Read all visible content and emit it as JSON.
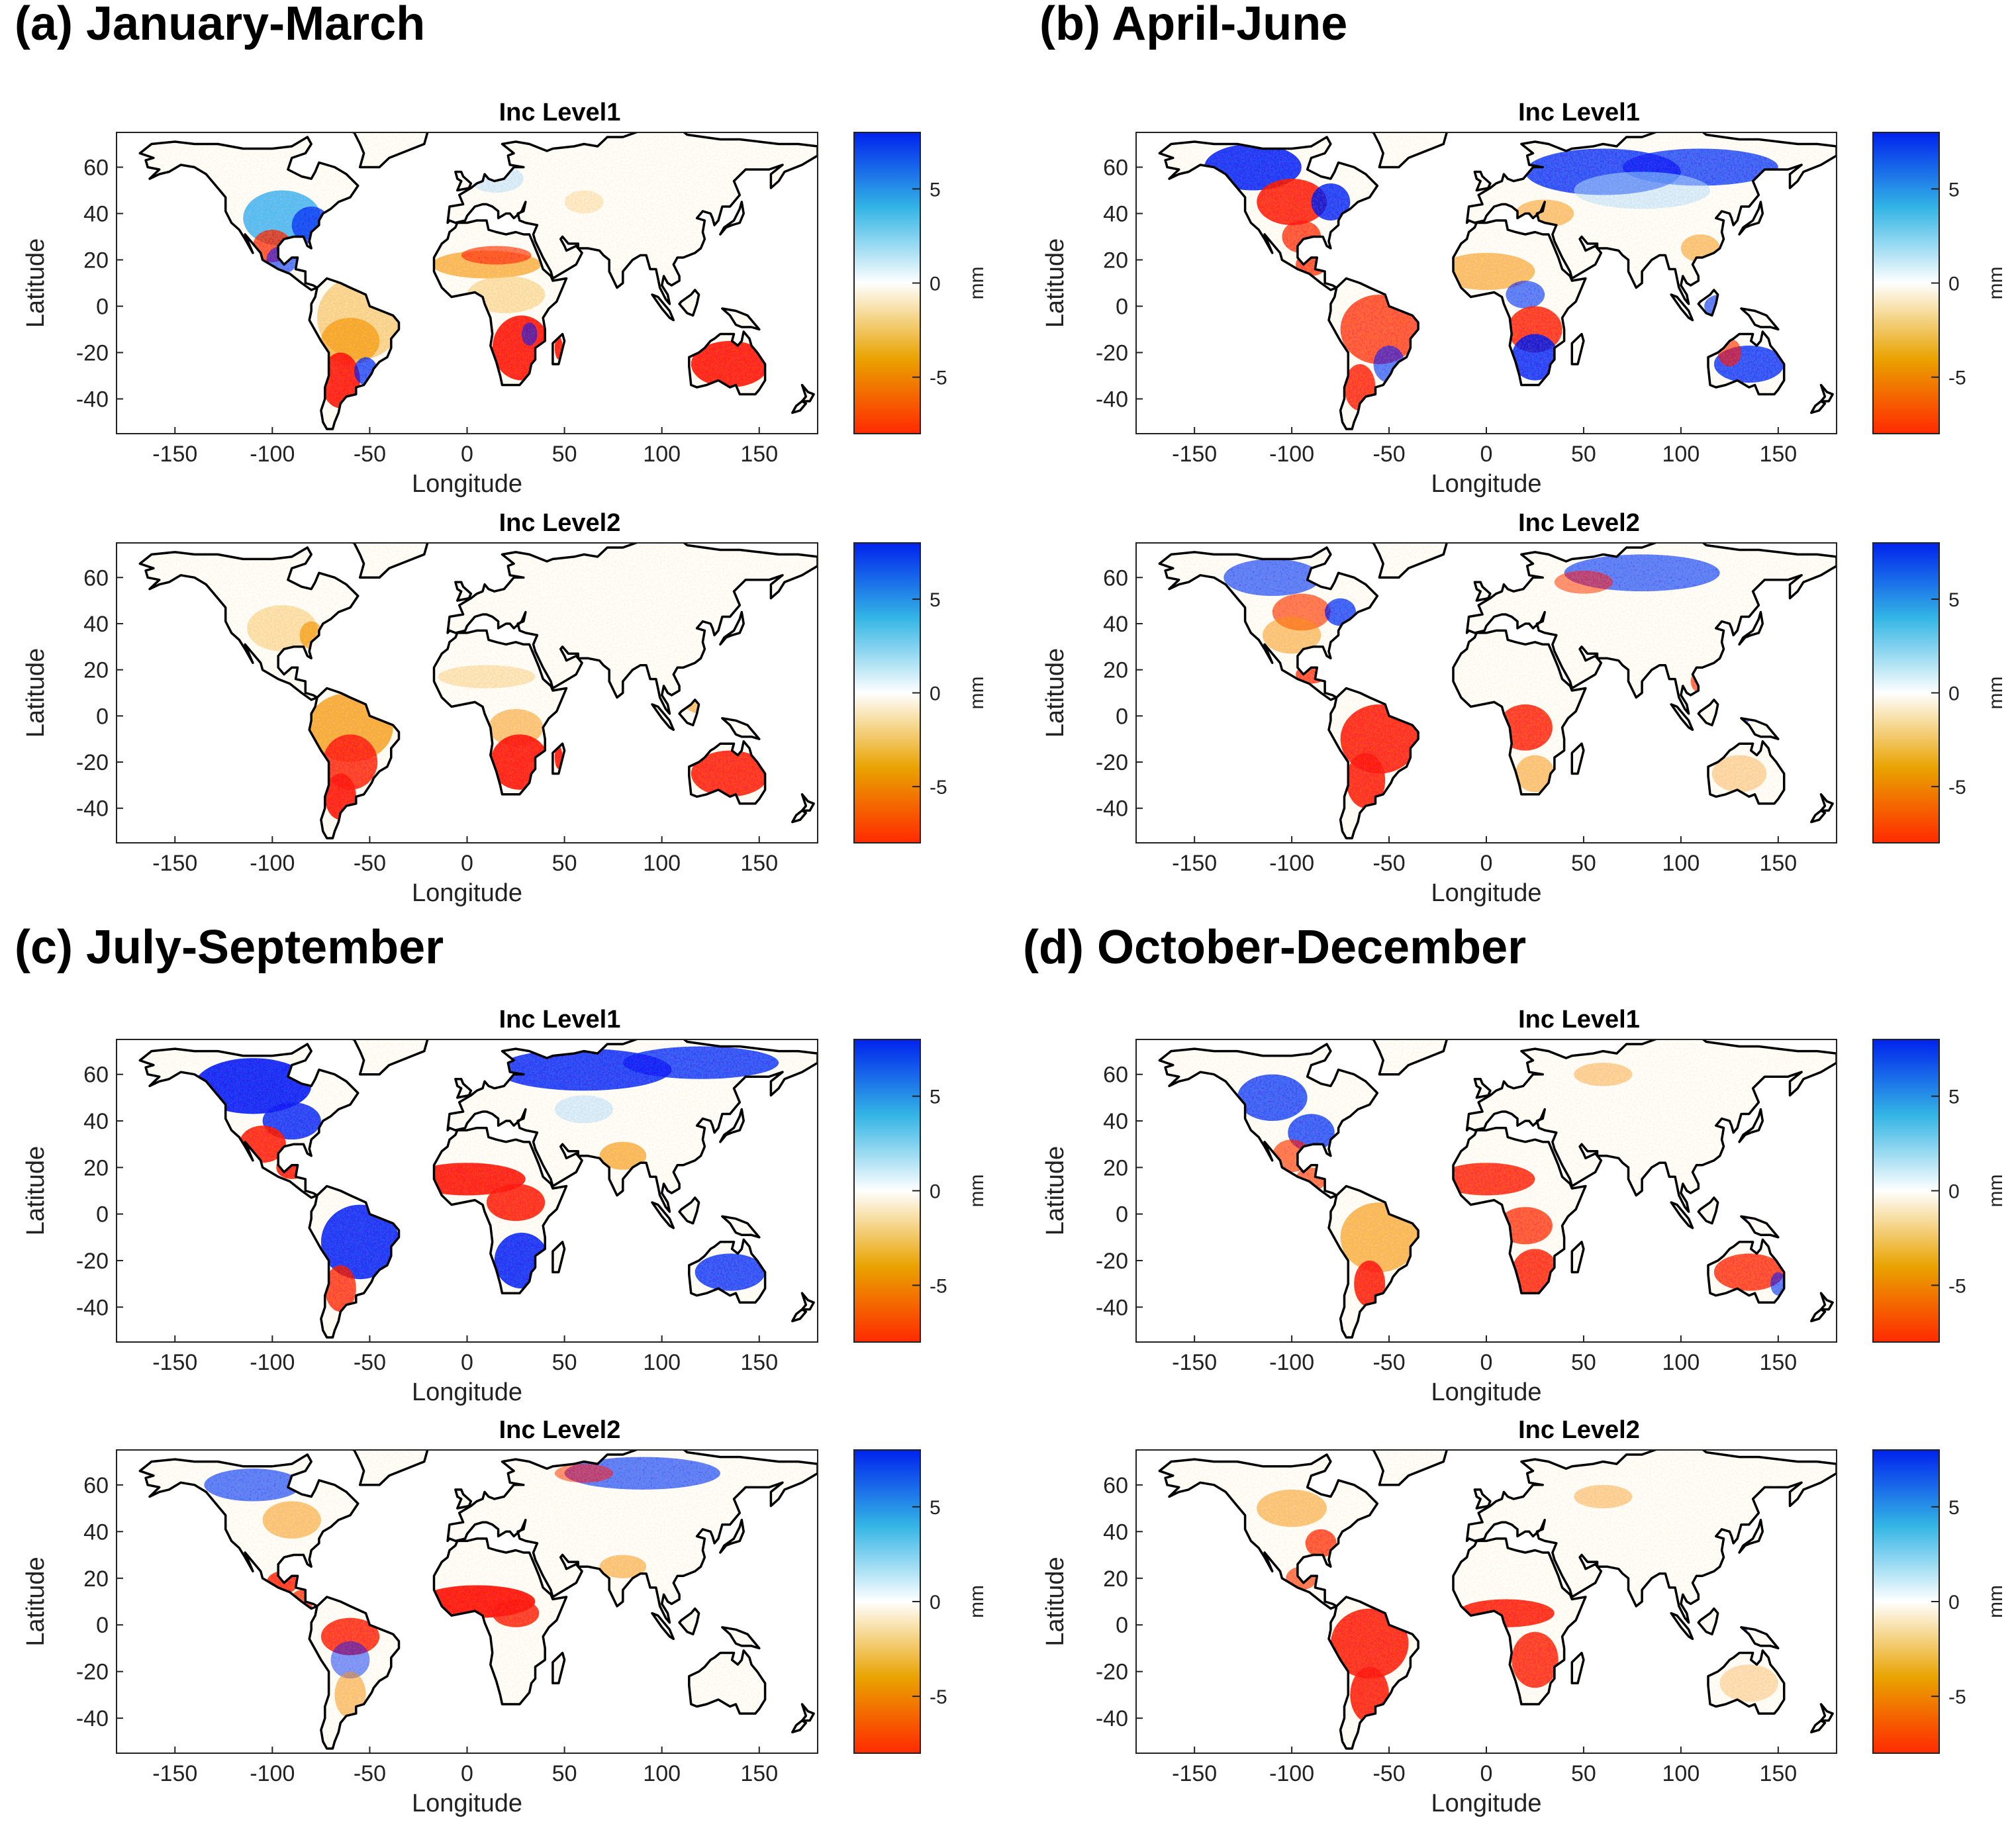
{
  "figure": {
    "panels": [
      {
        "label": "(a)  January-March"
      },
      {
        "label": "(b) April-June"
      },
      {
        "label": "(c) July-September"
      },
      {
        "label": "(d) October-December"
      }
    ]
  },
  "chart_data": [
    {
      "type": "heatmap",
      "panel": "(a)  January-March",
      "title": "Inc Level1",
      "xlabel": "Longitude",
      "ylabel": "Latitude",
      "xlim": [
        -180,
        180
      ],
      "ylim": [
        -55,
        75
      ],
      "xticks": [
        "-150",
        "-100",
        "-50",
        "0",
        "50",
        "100",
        "150"
      ],
      "yticks": [
        "60",
        "40",
        "20",
        "0",
        "-20",
        "-40"
      ],
      "colorbar": {
        "label": "mm",
        "range": [
          -8,
          8
        ],
        "ticks": [
          "5",
          "0",
          "-5"
        ],
        "colors": [
          "#ff2a00",
          "#e9a300",
          "#ffffff",
          "#33b5e5",
          "#0022ee"
        ]
      }
    },
    {
      "type": "heatmap",
      "panel": "(a)  January-March",
      "title": "Inc Level2",
      "xlabel": "Longitude",
      "ylabel": "Latitude",
      "xlim": [
        -180,
        180
      ],
      "ylim": [
        -55,
        75
      ],
      "xticks": [
        "-150",
        "-100",
        "-50",
        "0",
        "50",
        "100",
        "150"
      ],
      "yticks": [
        "60",
        "40",
        "20",
        "0",
        "-20",
        "-40"
      ],
      "colorbar": {
        "label": "mm",
        "range": [
          -8,
          8
        ],
        "ticks": [
          "5",
          "0",
          "-5"
        ],
        "colors": [
          "#ff2a00",
          "#e9a300",
          "#ffffff",
          "#33b5e5",
          "#0022ee"
        ]
      }
    },
    {
      "type": "heatmap",
      "panel": "(b) April-June",
      "title": "Inc Level1",
      "xlabel": "Longitude",
      "ylabel": "Latitude",
      "xlim": [
        -180,
        180
      ],
      "ylim": [
        -55,
        75
      ],
      "xticks": [
        "-150",
        "-100",
        "-50",
        "0",
        "50",
        "100",
        "150"
      ],
      "yticks": [
        "60",
        "40",
        "20",
        "0",
        "-20",
        "-40"
      ],
      "colorbar": {
        "label": "mm",
        "range": [
          -8,
          8
        ],
        "ticks": [
          "5",
          "0",
          "-5"
        ],
        "colors": [
          "#ff2a00",
          "#e9a300",
          "#ffffff",
          "#33b5e5",
          "#0022ee"
        ]
      }
    },
    {
      "type": "heatmap",
      "panel": "(b) April-June",
      "title": "Inc Level2",
      "xlabel": "Longitude",
      "ylabel": "Latitude",
      "xlim": [
        -180,
        180
      ],
      "ylim": [
        -55,
        75
      ],
      "xticks": [
        "-150",
        "-100",
        "-50",
        "0",
        "50",
        "100",
        "150"
      ],
      "yticks": [
        "60",
        "40",
        "20",
        "0",
        "-20",
        "-40"
      ],
      "colorbar": {
        "label": "mm",
        "range": [
          -8,
          8
        ],
        "ticks": [
          "5",
          "0",
          "-5"
        ],
        "colors": [
          "#ff2a00",
          "#e9a300",
          "#ffffff",
          "#33b5e5",
          "#0022ee"
        ]
      }
    },
    {
      "type": "heatmap",
      "panel": "(c) July-September",
      "title": "Inc Level1",
      "xlabel": "Longitude",
      "ylabel": "Latitude",
      "xlim": [
        -180,
        180
      ],
      "ylim": [
        -55,
        75
      ],
      "xticks": [
        "-150",
        "-100",
        "-50",
        "0",
        "50",
        "100",
        "150"
      ],
      "yticks": [
        "60",
        "40",
        "20",
        "0",
        "-20",
        "-40"
      ],
      "colorbar": {
        "label": "mm",
        "range": [
          -8,
          8
        ],
        "ticks": [
          "5",
          "0",
          "-5"
        ],
        "colors": [
          "#ff2a00",
          "#e9a300",
          "#ffffff",
          "#33b5e5",
          "#0022ee"
        ]
      }
    },
    {
      "type": "heatmap",
      "panel": "(c) July-September",
      "title": "Inc Level2",
      "xlabel": "Longitude",
      "ylabel": "Latitude",
      "xlim": [
        -180,
        180
      ],
      "ylim": [
        -55,
        75
      ],
      "xticks": [
        "-150",
        "-100",
        "-50",
        "0",
        "50",
        "100",
        "150"
      ],
      "yticks": [
        "60",
        "40",
        "20",
        "0",
        "-20",
        "-40"
      ],
      "colorbar": {
        "label": "mm",
        "range": [
          -8,
          8
        ],
        "ticks": [
          "5",
          "0",
          "-5"
        ],
        "colors": [
          "#ff2a00",
          "#e9a300",
          "#ffffff",
          "#33b5e5",
          "#0022ee"
        ]
      }
    },
    {
      "type": "heatmap",
      "panel": "(d) October-December",
      "title": "Inc Level1",
      "xlabel": "Longitude",
      "ylabel": "Latitude",
      "xlim": [
        -180,
        180
      ],
      "ylim": [
        -55,
        75
      ],
      "xticks": [
        "-150",
        "-100",
        "-50",
        "0",
        "50",
        "100",
        "150"
      ],
      "yticks": [
        "60",
        "40",
        "20",
        "0",
        "-20",
        "-40"
      ],
      "colorbar": {
        "label": "mm",
        "range": [
          -8,
          8
        ],
        "ticks": [
          "5",
          "0",
          "-5"
        ],
        "colors": [
          "#ff2a00",
          "#e9a300",
          "#ffffff",
          "#33b5e5",
          "#0022ee"
        ]
      }
    },
    {
      "type": "heatmap",
      "panel": "(d) October-December",
      "title": "Inc Level2",
      "xlabel": "Longitude",
      "ylabel": "Latitude",
      "xlim": [
        -180,
        180
      ],
      "ylim": [
        -55,
        75
      ],
      "xticks": [
        "-150",
        "-100",
        "-50",
        "0",
        "50",
        "100",
        "150"
      ],
      "yticks": [
        "60",
        "40",
        "20",
        "0",
        "-20",
        "-40"
      ],
      "colorbar": {
        "label": "mm",
        "range": [
          -8,
          8
        ],
        "ticks": [
          "5",
          "0",
          "-5"
        ],
        "colors": [
          "#ff2a00",
          "#e9a300",
          "#ffffff",
          "#33b5e5",
          "#0022ee"
        ]
      }
    }
  ]
}
